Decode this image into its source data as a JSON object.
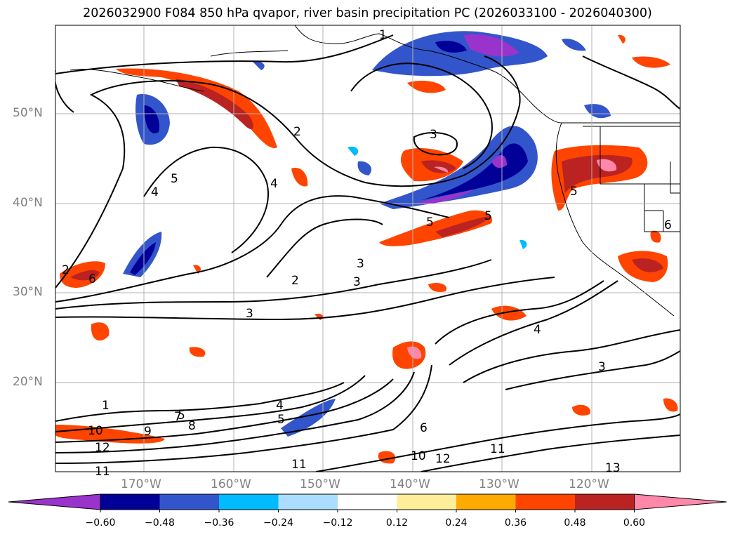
{
  "title": "2026032900 F084 850 hPa qvapor, river basin precipitation PC (2026033100 - 2026040300)",
  "lat_labels": [
    "50°N",
    "40°N",
    "30°N",
    "20°N"
  ],
  "lon_labels": [
    "170°W",
    "160°W",
    "150°W",
    "140°W",
    "130°W",
    "120°W"
  ],
  "colorbar": {
    "ticks": [
      "−0.60",
      "−0.48",
      "−0.36",
      "−0.24",
      "−0.12",
      "0.12",
      "0.24",
      "0.36",
      "0.48",
      "0.60"
    ],
    "colors": [
      "#9933cc",
      "#000099",
      "#3355cc",
      "#00bbff",
      "#aaddff",
      "#ffffff",
      "#ffee99",
      "#ffaa00",
      "#ff4400",
      "#bb2222",
      "#ff88aa"
    ]
  },
  "contour_labels": [
    "1",
    "1",
    "2",
    "2",
    "2",
    "3",
    "3",
    "3",
    "3",
    "3",
    "4",
    "4",
    "4",
    "4",
    "5",
    "5",
    "5",
    "5",
    "5",
    "5",
    "6",
    "6",
    "6",
    "7",
    "8",
    "9",
    "10",
    "10",
    "11",
    "11",
    "11",
    "12",
    "12",
    "13"
  ]
}
